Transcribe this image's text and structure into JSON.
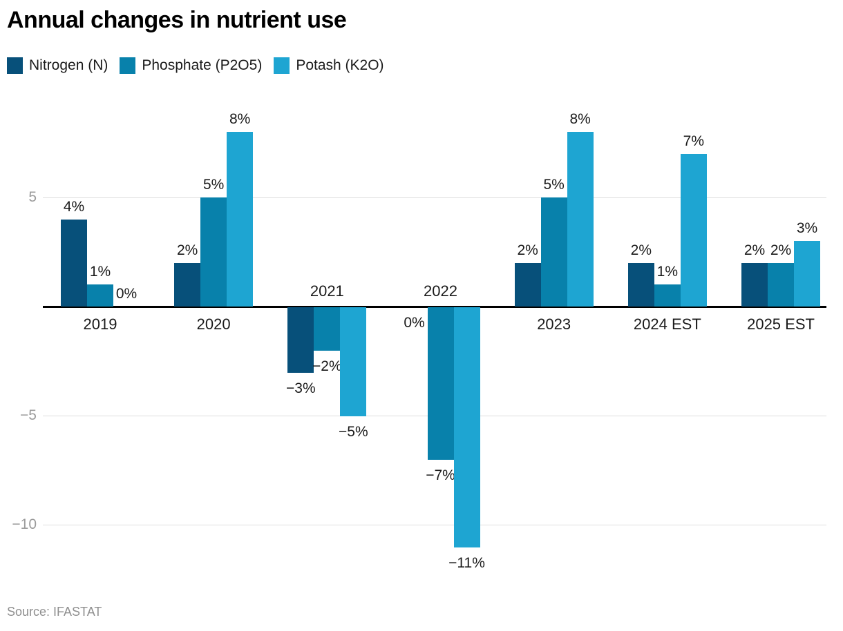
{
  "title": "Annual changes in nutrient use",
  "source": "Source: IFASTAT",
  "colors": {
    "nitrogen": "#07507a",
    "phosphate": "#0881ab",
    "potash": "#1ea5d2",
    "axis_line": "#000000",
    "gridline": "#dedede",
    "tick_text": "#9b9b9b"
  },
  "legend": [
    {
      "label": "Nitrogen (N)",
      "color": "#07507a"
    },
    {
      "label": "Phosphate (P2O5)",
      "color": "#0881ab"
    },
    {
      "label": "Potash (K2O)",
      "color": "#1ea5d2"
    }
  ],
  "chart_data": {
    "type": "bar",
    "title": "Annual changes in nutrient use",
    "unit": "%",
    "categories": [
      "2019",
      "2020",
      "2021",
      "2022",
      "2023",
      "2024 EST",
      "2025 EST"
    ],
    "series": [
      {
        "name": "Nitrogen (N)",
        "color": "#07507a",
        "values": [
          4,
          2,
          -3,
          0,
          2,
          2,
          2
        ],
        "labels": [
          "4%",
          "2%",
          "−3%",
          "0%",
          "2%",
          "2%",
          "2%"
        ]
      },
      {
        "name": "Phosphate (P2O5)",
        "color": "#0881ab",
        "values": [
          1,
          5,
          -2,
          -7,
          5,
          1,
          2
        ],
        "labels": [
          "1%",
          "5%",
          "−2%",
          "−7%",
          "5%",
          "1%",
          "2%"
        ]
      },
      {
        "name": "Potash (K2O)",
        "color": "#1ea5d2",
        "values": [
          0,
          8,
          -5,
          -11,
          8,
          7,
          3
        ],
        "labels": [
          "0%",
          "8%",
          "−5%",
          "−11%",
          "8%",
          "7%",
          "3%"
        ]
      }
    ],
    "yticks": [
      {
        "value": 5,
        "label": "5"
      },
      {
        "value": -5,
        "label": "−5"
      },
      {
        "value": -10,
        "label": "−10"
      }
    ],
    "ylim": [
      -12,
      9
    ],
    "grid": true,
    "legend_position": "top"
  }
}
